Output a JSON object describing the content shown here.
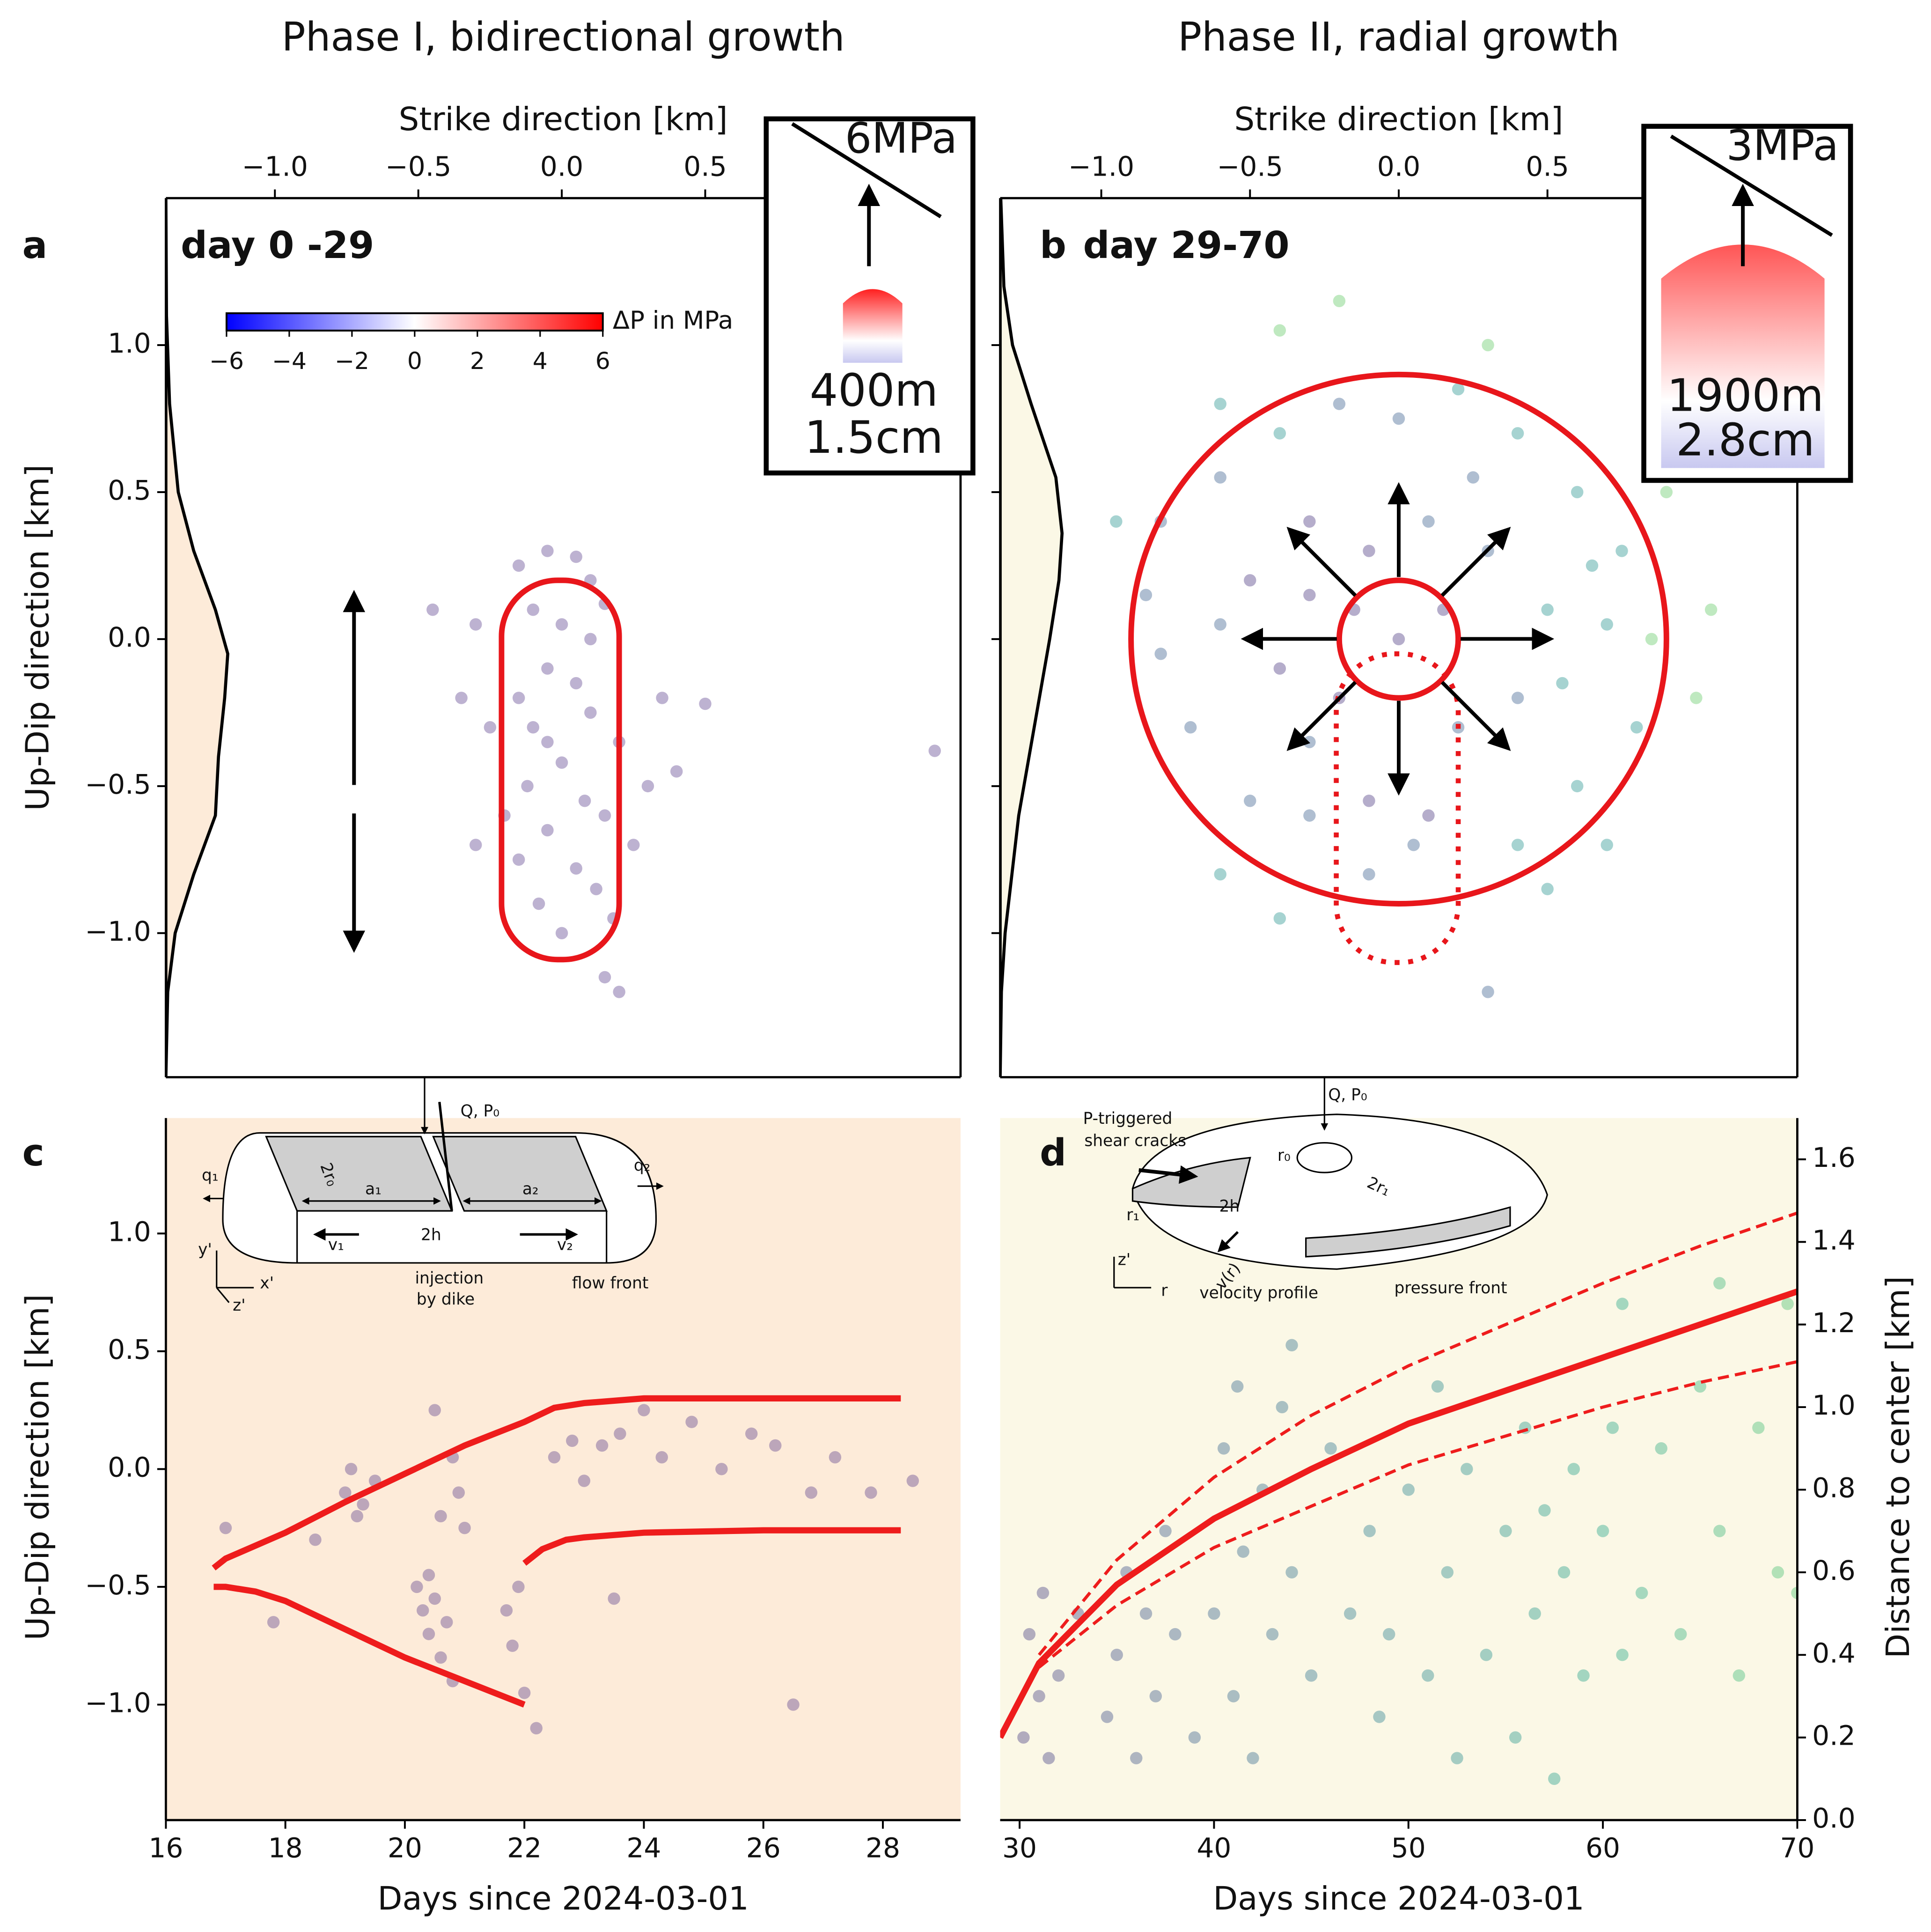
{
  "chart_data": [
    {
      "type": "scatter",
      "title": "Phase I, bidirectional growth",
      "panel_label": "a",
      "annotation": "day 0 -29",
      "x_label": "Strike direction [km]",
      "y_label": "Up-Dip direction [km]",
      "x_axis_side": "top",
      "y_axis_side": "left",
      "spines": [
        "left",
        "right",
        "top",
        "bottom"
      ],
      "xlim": [
        -1.38,
        1.39
      ],
      "ylim": [
        -1.49,
        1.5
      ],
      "xticks": [
        {
          "value": -1,
          "label": "−1.0"
        },
        {
          "value": -0.5,
          "label": "−0.5"
        },
        {
          "value": 0,
          "label": "0.0"
        },
        {
          "value": 0.5,
          "label": "0.5"
        }
      ],
      "yticks": [
        {
          "value": -1,
          "label": "−1.0"
        },
        {
          "value": -0.5,
          "label": "−0.5"
        },
        {
          "value": 0,
          "label": "0.0"
        },
        {
          "value": 0.5,
          "label": "0.5"
        },
        {
          "value": 1,
          "label": "1.0"
        }
      ],
      "color": "#5b3f8c",
      "alpha": 0.4,
      "x": [
        -0.15,
        -0.05,
        0.05,
        0.1,
        -0.45,
        -0.3,
        -0.1,
        0.0,
        0.15,
        -0.05,
        0.05,
        -0.15,
        0.1,
        -0.35,
        -0.1,
        0.2,
        0.0,
        -0.12,
        0.08,
        -0.2,
        0.15,
        -0.05,
        0.25,
        -0.15,
        0.05,
        0.3,
        -0.3,
        0.12,
        -0.08,
        0.18,
        0.0,
        0.15,
        0.2,
        0.35,
        0.5,
        1.3,
        0.4,
        -0.25,
        -0.05,
        0.1
      ],
      "y": [
        0.25,
        0.3,
        0.28,
        0.2,
        0.1,
        0.05,
        0.1,
        0.05,
        0.12,
        -0.1,
        -0.15,
        -0.2,
        -0.25,
        -0.2,
        -0.3,
        -0.35,
        -0.42,
        -0.5,
        -0.55,
        -0.6,
        -0.6,
        -0.65,
        -0.7,
        -0.75,
        -0.78,
        -0.5,
        -0.7,
        -0.85,
        -0.9,
        -0.95,
        -1.0,
        -1.15,
        -1.2,
        -0.2,
        -0.22,
        -0.38,
        -0.45,
        -0.3,
        -0.35,
        0.0
      ],
      "region": {
        "x": [
          -0.21,
          0.2
        ],
        "y": [
          -1.09,
          0.2
        ],
        "color": "#e8161b",
        "style": "solid"
      },
      "profile": {
        "y": [
          -1.49,
          -1.2,
          -1.0,
          -0.8,
          -0.6,
          -0.4,
          -0.2,
          -0.05,
          0.1,
          0.3,
          0.5,
          0.8,
          1.1,
          1.5
        ],
        "values": [
          0,
          0.03,
          0.15,
          0.45,
          0.8,
          0.85,
          0.95,
          1,
          0.8,
          0.45,
          0.2,
          0.06,
          0.01,
          0
        ],
        "fill": "#fdebd9"
      },
      "colorbar": {
        "label": "ΔP in MPa",
        "lim": [
          -6,
          6
        ],
        "colors": [
          "#0000ff",
          "#ffffff",
          "#ff0000"
        ],
        "ticks": [
          {
            "value": -6,
            "label": "−6"
          },
          {
            "value": -4,
            "label": "−4"
          },
          {
            "value": -2,
            "label": "−2"
          },
          0,
          2,
          4,
          6
        ]
      },
      "inset": {
        "stress": "6MPa",
        "length": "400m",
        "slip": "1.5cm"
      }
    },
    {
      "type": "scatter",
      "title": "Phase II, radial growth",
      "panel_label": "b",
      "annotation": "day 29-70",
      "x_label": "Strike direction [km]",
      "x_axis_side": "top",
      "y_axis_side": "left",
      "ytick_labels": false,
      "spines": [
        "left",
        "right",
        "top",
        "bottom"
      ],
      "xlim": [
        -1.34,
        1.34
      ],
      "ylim": [
        -1.49,
        1.5
      ],
      "xticks": [
        {
          "value": -1,
          "label": "−1.0"
        },
        {
          "value": -0.5,
          "label": "−0.5"
        },
        {
          "value": 0,
          "label": "0.0"
        },
        {
          "value": 0.5,
          "label": "0.5"
        }
      ],
      "yticks": [
        -1,
        -0.5,
        0,
        0.5,
        1
      ],
      "alpha": 0.4,
      "x": [
        -0.8,
        -0.6,
        -0.4,
        -0.2,
        0.0,
        0.2,
        0.4,
        0.6,
        0.75,
        0.85,
        0.8,
        0.6,
        0.4,
        0.1,
        -0.1,
        -0.3,
        -0.5,
        -0.7,
        -0.8,
        -0.85,
        -0.5,
        -0.3,
        -0.1,
        0.1,
        0.3,
        0.5,
        0.4,
        0.2,
        -0.2,
        -0.4,
        -0.6,
        0.0,
        0.15,
        -0.15,
        0.65,
        0.9,
        1.0,
        1.05,
        -0.95,
        -0.2,
        -0.4,
        0.3,
        -0.6,
        -0.4,
        -0.1,
        0.05,
        0.3,
        0.5,
        -0.3,
        0.25,
        -0.6,
        0.7,
        -0.3,
        0.55,
        0.7
      ],
      "y": [
        0.4,
        0.55,
        0.7,
        0.8,
        0.75,
        0.85,
        0.7,
        0.5,
        0.3,
        0.0,
        -0.3,
        -0.5,
        -0.7,
        -0.6,
        -0.55,
        -0.6,
        -0.55,
        -0.3,
        -0.05,
        0.15,
        0.2,
        0.4,
        0.3,
        0.4,
        0.3,
        0.1,
        -0.2,
        -0.3,
        -0.2,
        -0.1,
        0.05,
        0.0,
        0.1,
        0.1,
        0.25,
        0.5,
        -0.2,
        0.1,
        0.4,
        1.15,
        1.05,
        1.0,
        -0.8,
        -0.95,
        -0.8,
        -0.7,
        -1.2,
        -0.85,
        0.15,
        0.55,
        0.8,
        -0.7,
        -0.35,
        -0.15,
        0.05
      ],
      "colors": [
        "#365d8d",
        "#365d8d",
        "#21918c",
        "#365d8d",
        "#365d8d",
        "#21918c",
        "#21918c",
        "#21918c",
        "#21918c",
        "#5ec962",
        "#21918c",
        "#21918c",
        "#21918c",
        "#46337e",
        "#46337e",
        "#365d8d",
        "#365d8d",
        "#365d8d",
        "#365d8d",
        "#365d8d",
        "#46337e",
        "#46337e",
        "#46337e",
        "#365d8d",
        "#365d8d",
        "#21918c",
        "#365d8d",
        "#365d8d",
        "#46337e",
        "#46337e",
        "#365d8d",
        "#46337e",
        "#46337e",
        "#46337e",
        "#21918c",
        "#5ec962",
        "#5ec962",
        "#5ec962",
        "#21918c",
        "#5ec962",
        "#5ec962",
        "#5ec962",
        "#21918c",
        "#21918c",
        "#365d8d",
        "#365d8d",
        "#365d8d",
        "#21918c",
        "#46337e",
        "#365d8d",
        "#21918c",
        "#21918c",
        "#365d8d",
        "#21918c",
        "#21918c"
      ],
      "circles": [
        {
          "center": [
            0,
            0
          ],
          "r": 0.9,
          "color": "#e8161b"
        },
        {
          "center": [
            0,
            0
          ],
          "r": 0.2,
          "color": "#e8161b"
        }
      ],
      "region": {
        "x": [
          -0.21,
          0.2
        ],
        "y": [
          -1.1,
          -0.05
        ],
        "color": "#e8161b",
        "style": "dotted"
      },
      "profile": {
        "y": [
          -1.49,
          -1.2,
          -1.0,
          -0.6,
          -0.3,
          0,
          0.2,
          0.36,
          0.55,
          0.8,
          1.0,
          1.2,
          1.5
        ],
        "values": [
          0,
          0.02,
          0.08,
          0.3,
          0.55,
          0.8,
          0.95,
          1,
          0.9,
          0.5,
          0.2,
          0.06,
          0.01
        ],
        "fill": "#fbf8e6"
      },
      "inset": {
        "stress": "3MPa",
        "length": "1900m",
        "slip": "2.8cm"
      }
    },
    {
      "type": "scatter",
      "panel_label": "c",
      "x_label": "Days since 2024-03-01",
      "y_label": "Up-Dip direction [km]",
      "x_axis_side": "bottom",
      "y_axis_side": "left",
      "spines": [
        "left",
        "bottom"
      ],
      "background": "#fdebd9",
      "xlim": [
        16,
        29.3
      ],
      "ylim": [
        -1.49,
        1.49
      ],
      "xticks": [
        16,
        18,
        20,
        22,
        24,
        26,
        28
      ],
      "yticks": [
        {
          "value": -1,
          "label": "−1.0"
        },
        {
          "value": -0.5,
          "label": "−0.5"
        },
        {
          "value": 0,
          "label": "0.0"
        },
        {
          "value": 0.5,
          "label": "0.5"
        },
        {
          "value": 1,
          "label": "1.0"
        }
      ],
      "color": "#5b3f8c",
      "alpha": 0.4,
      "x": [
        17,
        17.8,
        18.5,
        19,
        19.1,
        19.3,
        19.2,
        19.5,
        20.2,
        20.3,
        20.4,
        20.5,
        20.6,
        20.7,
        20.4,
        20.8,
        20.6,
        20.9,
        21,
        20.8,
        21.7,
        21.8,
        22,
        21.9,
        22.2,
        22.5,
        22.8,
        23,
        23.3,
        23.6,
        24,
        24.3,
        24.8,
        25.3,
        25.8,
        26.2,
        26.8,
        27.2,
        27.8,
        28.5,
        26.5,
        23.5,
        20.5
      ],
      "y": [
        -0.25,
        -0.65,
        -0.3,
        -0.1,
        0.0,
        -0.15,
        -0.2,
        -0.05,
        -0.5,
        -0.6,
        -0.7,
        -0.55,
        -0.8,
        -0.65,
        -0.45,
        -0.9,
        -0.2,
        -0.1,
        -0.25,
        0.05,
        -0.6,
        -0.75,
        -0.95,
        -0.5,
        -1.1,
        0.05,
        0.12,
        -0.05,
        0.1,
        0.15,
        0.25,
        0.05,
        0.2,
        0.0,
        0.15,
        0.1,
        -0.1,
        0.05,
        -0.1,
        -0.05,
        -1.0,
        -0.55,
        0.25
      ],
      "lines": [
        {
          "x": [
            16.8,
            17,
            18,
            19,
            20,
            21,
            22,
            22.5,
            23,
            24,
            25,
            26,
            28.3
          ],
          "y": [
            -0.42,
            -0.38,
            -0.27,
            -0.14,
            -0.02,
            0.1,
            0.2,
            0.26,
            0.28,
            0.3,
            0.3,
            0.3,
            0.3
          ],
          "color": "#ee1c1c",
          "style": "solid"
        },
        {
          "x": [
            16.8,
            17,
            17.5,
            18,
            19,
            20,
            21,
            22
          ],
          "y": [
            -0.5,
            -0.5,
            -0.52,
            -0.56,
            -0.68,
            -0.8,
            -0.9,
            -1.0
          ],
          "color": "#ee1c1c",
          "style": "solid"
        },
        {
          "x": [
            22,
            22.3,
            22.7,
            23,
            24,
            25,
            26,
            28.3
          ],
          "y": [
            -0.4,
            -0.34,
            -0.3,
            -0.29,
            -0.27,
            -0.265,
            -0.26,
            -0.26
          ],
          "color": "#ee1c1c",
          "style": "solid"
        }
      ],
      "diagram": {
        "labels": [
          "Q, P₀",
          "2r₀",
          "a₁",
          "a₂",
          "q₁",
          "q₂",
          "2h",
          "v₁",
          "v₂",
          "y'",
          "x'",
          "z'",
          "injection",
          "by dike",
          "flow front"
        ]
      }
    },
    {
      "type": "scatter",
      "panel_label": "d",
      "x_label": "Days since 2024-03-01",
      "y_label": "Distance to center [km]",
      "x_axis_side": "bottom",
      "y_axis_side": "right",
      "spines": [
        "right",
        "bottom"
      ],
      "background": "#fbf8e6",
      "xlim": [
        29,
        70
      ],
      "ylim": [
        0,
        1.7
      ],
      "xticks": [
        30,
        40,
        50,
        60,
        70
      ],
      "yticks": [
        {
          "value": 0,
          "label": "0.0"
        },
        {
          "value": 0.2,
          "label": "0.2"
        },
        {
          "value": 0.4,
          "label": "0.4"
        },
        {
          "value": 0.6,
          "label": "0.6"
        },
        {
          "value": 0.8,
          "label": "0.8"
        },
        {
          "value": 1,
          "label": "1.0"
        },
        {
          "value": 1.2,
          "label": "1.2"
        },
        {
          "value": 1.4,
          "label": "1.4"
        },
        {
          "value": 1.6,
          "label": "1.6"
        }
      ],
      "alpha": 0.4,
      "colormap": [
        "#46337e",
        "#365d8d",
        "#277f8e",
        "#1fa187",
        "#4ac16d"
      ],
      "x": [
        30.2,
        30.5,
        31,
        31.2,
        31.5,
        32,
        33,
        34.5,
        35,
        35.5,
        36,
        36.5,
        37,
        37.5,
        38,
        39,
        40,
        40.5,
        41,
        41.2,
        41.5,
        42,
        42.5,
        43,
        43.5,
        44,
        45,
        46,
        47,
        48,
        48.5,
        49,
        50,
        51,
        51.5,
        52,
        52.5,
        53,
        54,
        55,
        55.5,
        56,
        56.5,
        57,
        57.5,
        58,
        58.5,
        59,
        60,
        60.5,
        61,
        62,
        63,
        64,
        65,
        66,
        67,
        68,
        69,
        69.5,
        70,
        66,
        61,
        44
      ],
      "y": [
        0.2,
        0.45,
        0.3,
        0.55,
        0.15,
        0.35,
        0.5,
        0.25,
        0.4,
        0.6,
        0.15,
        0.5,
        0.3,
        0.7,
        0.45,
        0.2,
        0.5,
        0.9,
        0.3,
        1.05,
        0.65,
        0.15,
        0.8,
        0.45,
        1.0,
        0.6,
        0.35,
        0.9,
        0.5,
        0.7,
        0.25,
        0.45,
        0.8,
        0.35,
        1.05,
        0.6,
        0.15,
        0.85,
        0.4,
        0.7,
        0.2,
        0.95,
        0.5,
        0.75,
        0.1,
        0.6,
        0.85,
        0.35,
        0.7,
        0.95,
        0.4,
        0.55,
        0.9,
        0.45,
        1.05,
        0.7,
        0.35,
        0.95,
        0.6,
        1.25,
        0.55,
        1.3,
        1.25,
        1.15
      ],
      "lines": [
        {
          "x": [
            29,
            31,
            35,
            40,
            45,
            50,
            55,
            60,
            65,
            70
          ],
          "y": [
            0.2,
            0.38,
            0.57,
            0.73,
            0.85,
            0.96,
            1.04,
            1.12,
            1.2,
            1.28
          ],
          "color": "#ee1c1c",
          "style": "solid"
        },
        {
          "x": [
            31,
            35,
            40,
            45,
            50,
            55,
            60,
            65,
            70
          ],
          "y": [
            0.4,
            0.63,
            0.83,
            0.98,
            1.1,
            1.2,
            1.3,
            1.39,
            1.47
          ],
          "color": "#ee1c1c",
          "style": "dashed"
        },
        {
          "x": [
            31,
            35,
            40,
            45,
            50,
            55,
            60,
            65,
            70
          ],
          "y": [
            0.37,
            0.52,
            0.66,
            0.76,
            0.86,
            0.93,
            1.0,
            1.06,
            1.11
          ],
          "color": "#ee1c1c",
          "style": "dashed"
        }
      ],
      "diagram": {
        "labels": [
          "Q, P₀",
          "P-triggered",
          "shear cracks",
          "r₀",
          "2r₁",
          "r₁",
          "2h",
          "v(r)",
          "z'",
          "r",
          "velocity profile",
          "pressure front"
        ]
      }
    }
  ]
}
